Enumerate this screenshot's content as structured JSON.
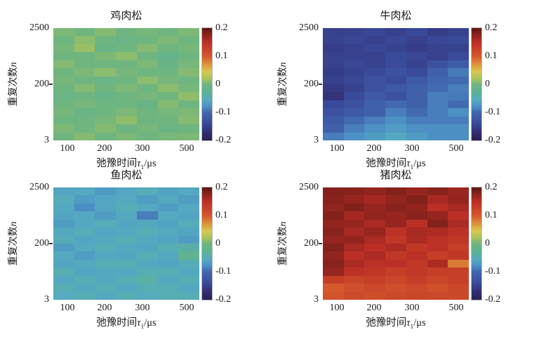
{
  "figure": {
    "background": "#ffffff",
    "colormap_stops": [
      [
        -0.2,
        "#2b1f55"
      ],
      [
        -0.17,
        "#312e74"
      ],
      [
        -0.14,
        "#3a4a9a"
      ],
      [
        -0.1,
        "#4166ae"
      ],
      [
        -0.08,
        "#4b8ec4"
      ],
      [
        -0.055,
        "#55abc0"
      ],
      [
        -0.03,
        "#5cb294"
      ],
      [
        0.0,
        "#6fb580"
      ],
      [
        0.02,
        "#a8c25c"
      ],
      [
        0.045,
        "#d7c84e"
      ],
      [
        0.065,
        "#dd9e3c"
      ],
      [
        0.1,
        "#d4562c"
      ],
      [
        0.15,
        "#bb2f26"
      ],
      [
        0.2,
        "#5e1714"
      ]
    ],
    "axes": {
      "ylabel_text": "重复次数",
      "ylabel_var": "n",
      "xlabel_prefix": "弛豫时间",
      "xlabel_tau": "τ",
      "xlabel_sub": "1",
      "xlabel_suffix": "/μs",
      "yticks": [
        "2500",
        "200",
        "3"
      ],
      "xticks": [
        "100",
        "200",
        "300",
        "500"
      ],
      "cbticks": [
        "0.2",
        "0.1",
        "0",
        "-0.1",
        "-0.2"
      ]
    },
    "panels": [
      {
        "id": "chicken",
        "title": "鸡肉松"
      },
      {
        "id": "beef",
        "title": "牛肉松"
      },
      {
        "id": "fish",
        "title": "鱼肉松"
      },
      {
        "id": "pork",
        "title": "猪肉松"
      }
    ]
  },
  "chart_data": [
    {
      "type": "heatmap",
      "title": "鸡肉松",
      "xlabel": "弛豫时间τ1/μs",
      "ylabel": "重复次数n",
      "x_ticks": [
        100,
        200,
        300,
        500
      ],
      "y_ticks": [
        3,
        200,
        2500
      ],
      "value_range": [
        -0.2,
        0.2
      ],
      "colormap": "jet",
      "rows_order": "top(n=2500) to bottom(n=3)",
      "values": [
        [
          0.005,
          0.0,
          0.008,
          0.0,
          0.003,
          0.0,
          0.005
        ],
        [
          0.0,
          0.01,
          0.0,
          -0.008,
          0.0,
          0.005,
          0.0
        ],
        [
          0.003,
          0.015,
          -0.01,
          0.0,
          0.008,
          0.0,
          0.003
        ],
        [
          0.0,
          0.0,
          0.005,
          0.01,
          0.0,
          -0.015,
          0.0
        ],
        [
          0.008,
          0.0,
          0.0,
          0.0,
          0.005,
          -0.01,
          0.003
        ],
        [
          0.0,
          0.005,
          0.01,
          0.003,
          0.0,
          0.0,
          0.008
        ],
        [
          0.003,
          0.0,
          -0.008,
          0.0,
          0.01,
          0.003,
          0.0
        ],
        [
          0.0,
          0.008,
          0.0,
          0.005,
          0.0,
          0.01,
          0.003
        ],
        [
          -0.008,
          0.0,
          -0.01,
          0.0,
          0.003,
          0.0,
          0.012
        ],
        [
          0.0,
          0.003,
          0.0,
          0.0,
          -0.01,
          0.008,
          0.0
        ],
        [
          0.003,
          -0.008,
          0.0,
          0.005,
          0.0,
          0.003,
          0.005
        ],
        [
          0.0,
          0.0,
          0.003,
          0.012,
          0.0,
          0.0,
          0.008
        ],
        [
          0.005,
          0.0,
          0.008,
          0.0,
          0.003,
          -0.008,
          0.0
        ],
        [
          0.0,
          0.008,
          0.0,
          0.005,
          0.0,
          0.003,
          0.005
        ]
      ]
    },
    {
      "type": "heatmap",
      "title": "牛肉松",
      "xlabel": "弛豫时间τ1/μs",
      "ylabel": "重复次数n",
      "x_ticks": [
        100,
        200,
        300,
        500
      ],
      "y_ticks": [
        3,
        200,
        2500
      ],
      "value_range": [
        -0.2,
        0.2
      ],
      "colormap": "jet",
      "rows_order": "top(n=2500) to bottom(n=3)",
      "values": [
        [
          -0.15,
          -0.148,
          -0.143,
          -0.15,
          -0.14,
          -0.155,
          -0.148
        ],
        [
          -0.148,
          -0.143,
          -0.15,
          -0.143,
          -0.15,
          -0.143,
          -0.14
        ],
        [
          -0.155,
          -0.15,
          -0.143,
          -0.148,
          -0.155,
          -0.148,
          -0.15
        ],
        [
          -0.15,
          -0.148,
          -0.15,
          -0.14,
          -0.143,
          -0.15,
          -0.138
        ],
        [
          -0.15,
          -0.143,
          -0.148,
          -0.138,
          -0.148,
          -0.128,
          -0.115
        ],
        [
          -0.155,
          -0.148,
          -0.14,
          -0.13,
          -0.138,
          -0.108,
          -0.09
        ],
        [
          -0.15,
          -0.143,
          -0.13,
          -0.138,
          -0.118,
          -0.1,
          -0.098
        ],
        [
          -0.158,
          -0.148,
          -0.128,
          -0.118,
          -0.108,
          -0.098,
          -0.088
        ],
        [
          -0.165,
          -0.14,
          -0.118,
          -0.128,
          -0.108,
          -0.088,
          -0.09
        ],
        [
          -0.14,
          -0.128,
          -0.108,
          -0.098,
          -0.108,
          -0.088,
          -0.098
        ],
        [
          -0.128,
          -0.118,
          -0.108,
          -0.088,
          -0.098,
          -0.088,
          -0.078
        ],
        [
          -0.118,
          -0.098,
          -0.088,
          -0.078,
          -0.088,
          -0.088,
          -0.088
        ],
        [
          -0.108,
          -0.088,
          -0.078,
          -0.068,
          -0.078,
          -0.078,
          -0.078
        ],
        [
          -0.088,
          -0.078,
          -0.068,
          -0.058,
          -0.068,
          -0.078,
          -0.078
        ]
      ]
    },
    {
      "type": "heatmap",
      "title": "鱼肉松",
      "xlabel": "弛豫时间τ1/μs",
      "ylabel": "重复次数n",
      "x_ticks": [
        100,
        200,
        300,
        500
      ],
      "y_ticks": [
        3,
        200,
        2500
      ],
      "value_range": [
        -0.2,
        0.2
      ],
      "colormap": "jet",
      "rows_order": "top(n=2500) to bottom(n=3)",
      "values": [
        [
          -0.06,
          -0.058,
          -0.07,
          -0.06,
          -0.05,
          -0.062,
          -0.058
        ],
        [
          -0.052,
          -0.068,
          -0.06,
          -0.058,
          -0.068,
          -0.058,
          -0.068
        ],
        [
          -0.058,
          -0.08,
          -0.06,
          -0.05,
          -0.058,
          -0.068,
          -0.058
        ],
        [
          -0.06,
          -0.058,
          -0.068,
          -0.058,
          -0.088,
          -0.058,
          -0.06
        ],
        [
          -0.068,
          -0.058,
          -0.05,
          -0.06,
          -0.058,
          -0.062,
          -0.05
        ],
        [
          -0.058,
          -0.05,
          -0.06,
          -0.058,
          -0.048,
          -0.058,
          -0.06
        ],
        [
          -0.05,
          -0.06,
          -0.058,
          -0.048,
          -0.058,
          -0.06,
          -0.068
        ],
        [
          -0.068,
          -0.058,
          -0.048,
          -0.058,
          -0.06,
          -0.048,
          -0.04
        ],
        [
          -0.058,
          -0.068,
          -0.058,
          -0.06,
          -0.048,
          -0.058,
          -0.025
        ],
        [
          -0.06,
          -0.058,
          -0.048,
          -0.048,
          -0.058,
          -0.06,
          -0.05
        ],
        [
          -0.048,
          -0.06,
          -0.058,
          -0.058,
          -0.048,
          -0.048,
          -0.058
        ],
        [
          -0.058,
          -0.048,
          -0.058,
          -0.048,
          -0.038,
          -0.058,
          -0.048
        ],
        [
          -0.048,
          -0.058,
          -0.048,
          -0.058,
          -0.048,
          -0.048,
          -0.058
        ],
        [
          -0.055,
          -0.048,
          -0.058,
          -0.048,
          -0.055,
          -0.048,
          -0.048
        ]
      ]
    },
    {
      "type": "heatmap",
      "title": "猪肉松",
      "xlabel": "弛豫时间τ1/μs",
      "ylabel": "重复次数n",
      "x_ticks": [
        100,
        200,
        300,
        500
      ],
      "y_ticks": [
        3,
        200,
        2500
      ],
      "value_range": [
        -0.2,
        0.2
      ],
      "colormap": "jet",
      "rows_order": "top(n=2500) to bottom(n=3)",
      "values": [
        [
          0.18,
          0.178,
          0.172,
          0.18,
          0.17,
          0.178,
          0.168
        ],
        [
          0.178,
          0.17,
          0.162,
          0.172,
          0.18,
          0.16,
          0.17
        ],
        [
          0.172,
          0.18,
          0.17,
          0.178,
          0.172,
          0.15,
          0.16
        ],
        [
          0.18,
          0.162,
          0.172,
          0.17,
          0.178,
          0.17,
          0.15
        ],
        [
          0.172,
          0.17,
          0.16,
          0.17,
          0.15,
          0.18,
          0.158
        ],
        [
          0.178,
          0.16,
          0.17,
          0.148,
          0.16,
          0.158,
          0.148
        ],
        [
          0.17,
          0.172,
          0.158,
          0.14,
          0.158,
          0.148,
          0.14
        ],
        [
          0.18,
          0.16,
          0.15,
          0.158,
          0.138,
          0.148,
          0.13
        ],
        [
          0.172,
          0.15,
          0.158,
          0.14,
          0.148,
          0.13,
          0.138
        ],
        [
          0.178,
          0.158,
          0.148,
          0.15,
          0.138,
          0.158,
          0.082
        ],
        [
          0.17,
          0.148,
          0.14,
          0.13,
          0.138,
          0.13,
          0.128
        ],
        [
          0.13,
          0.122,
          0.13,
          0.12,
          0.13,
          0.12,
          0.128
        ],
        [
          0.098,
          0.108,
          0.118,
          0.11,
          0.118,
          0.108,
          0.118
        ],
        [
          0.102,
          0.115,
          0.11,
          0.118,
          0.12,
          0.118,
          0.118
        ]
      ]
    }
  ]
}
